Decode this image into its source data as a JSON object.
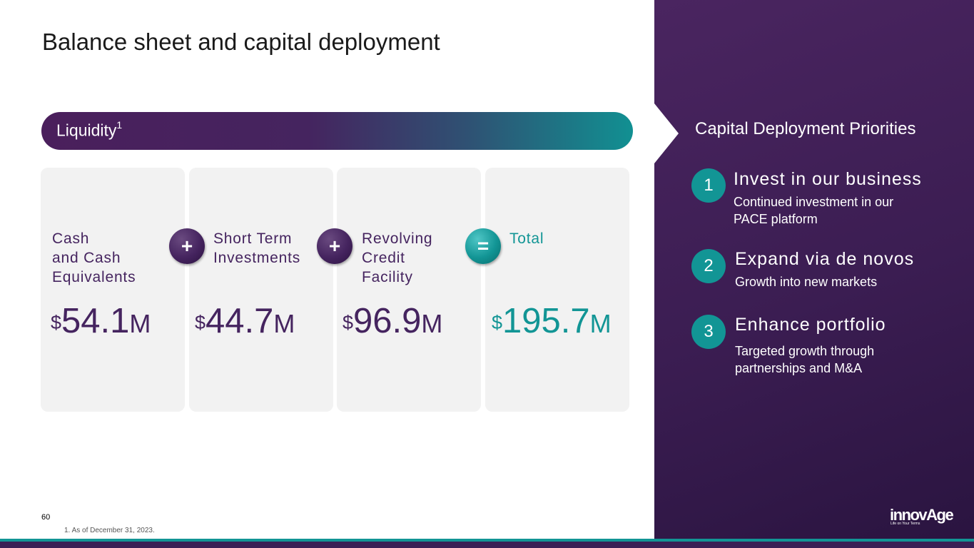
{
  "title": "Balance sheet and capital deployment",
  "liquidity": {
    "label": "Liquidity",
    "superscript": "1"
  },
  "cards": [
    {
      "label_lines": [
        "Cash",
        "and Cash",
        "Equivalents"
      ],
      "currency": "$",
      "value": "54.1",
      "unit": "M"
    },
    {
      "label_lines": [
        "Short Term",
        "Investments"
      ],
      "currency": "$",
      "value": "44.7",
      "unit": "M"
    },
    {
      "label_lines": [
        "Revolving",
        "Credit",
        "Facility"
      ],
      "currency": "$",
      "value": "96.9",
      "unit": "M"
    },
    {
      "label_lines": [
        "Total"
      ],
      "currency": "$",
      "value": "195.7",
      "unit": "M"
    }
  ],
  "operators": [
    "+",
    "+",
    "="
  ],
  "priorities": {
    "title": "Capital Deployment Priorities",
    "items": [
      {
        "number": "1",
        "heading": "Invest in our business",
        "text": "Continued investment in our PACE platform"
      },
      {
        "number": "2",
        "heading": "Expand via de novos",
        "text": "Growth into new markets"
      },
      {
        "number": "3",
        "heading": "Enhance portfolio",
        "text": "Targeted growth through partnerships and M&A"
      }
    ]
  },
  "page_number": "60",
  "footnote": "1.  As of December 31, 2023.",
  "logo": {
    "word": "innovAge",
    "tagline": "Life on Your Terms"
  },
  "colors": {
    "purple": "#45245f",
    "teal": "#129595",
    "panel": "#3b1d52",
    "card_bg": "#f2f2f2"
  }
}
